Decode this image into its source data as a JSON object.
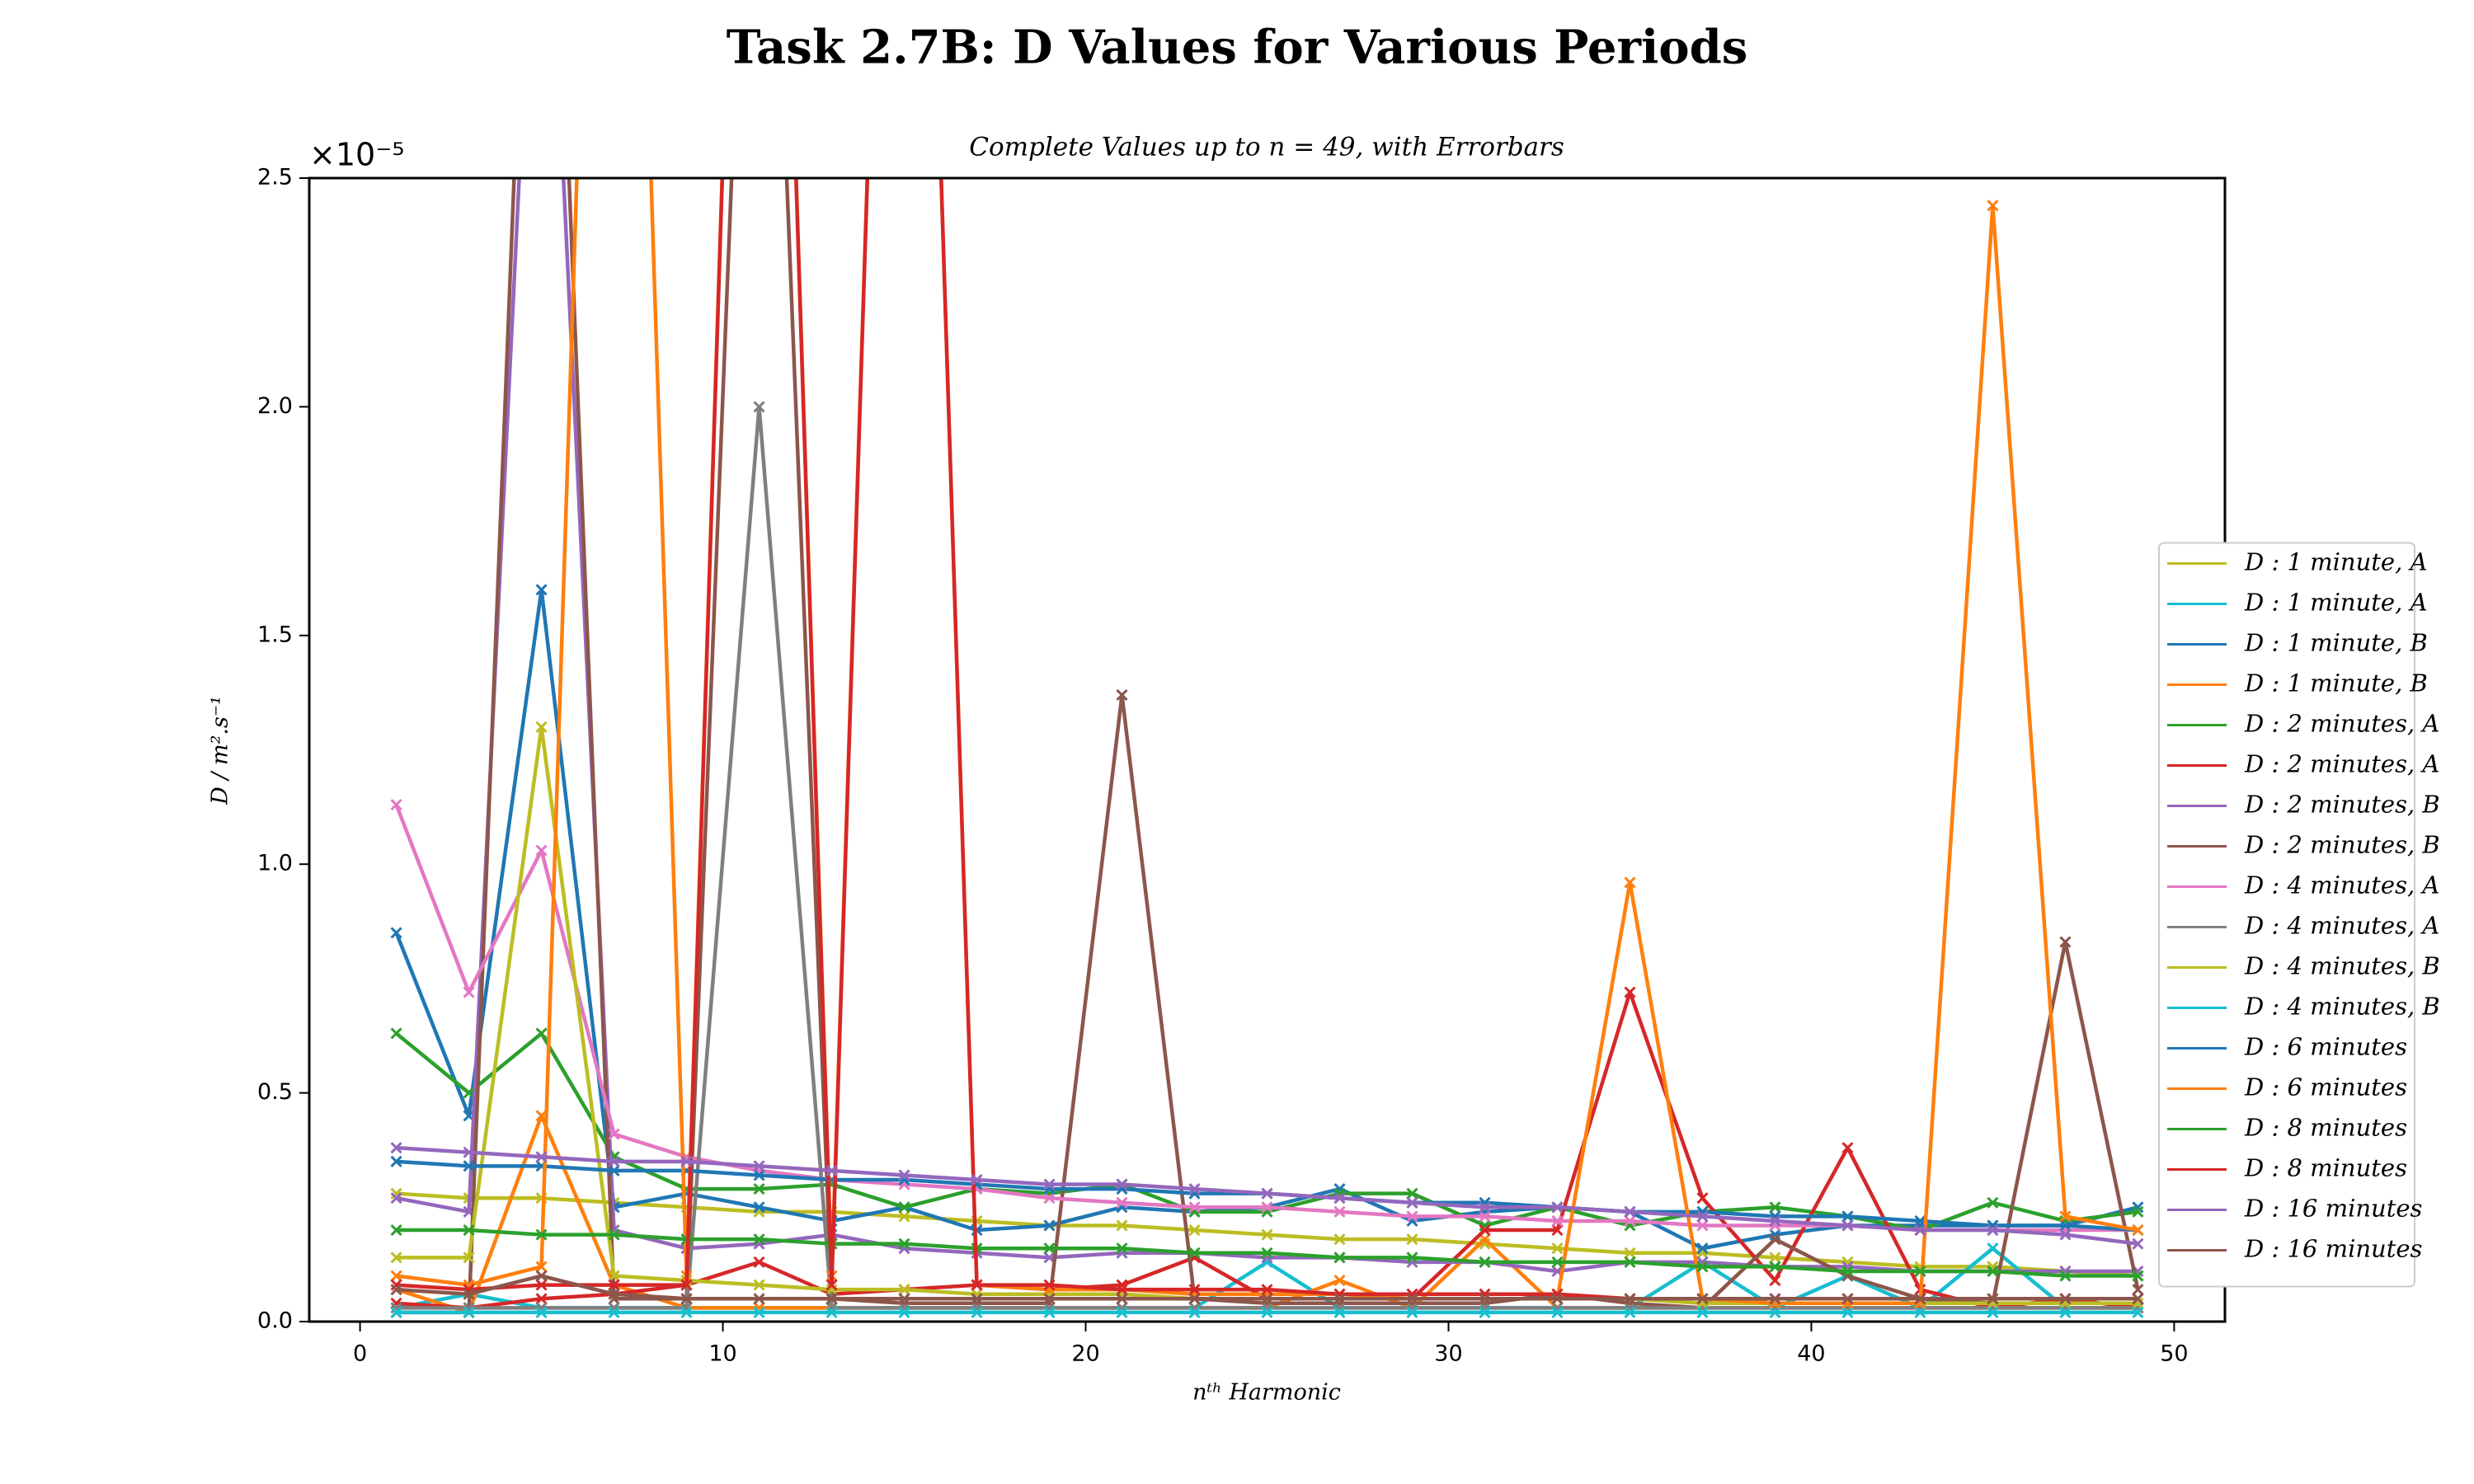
{
  "chart_data": {
    "type": "line",
    "title": "Task 2.7B: D Values for Various Periods",
    "subtitle": "Complete Values up to n = 49, with Errorbars",
    "x_label": "nᵗʰ Harmonic",
    "y_label": "D / m².s⁻¹",
    "offset_text": "×10⁻⁵",
    "marker": "x",
    "legend": "right",
    "x": [
      1,
      3,
      5,
      7,
      9,
      11,
      13,
      15,
      17,
      19,
      21,
      23,
      25,
      27,
      29,
      31,
      33,
      35,
      37,
      39,
      41,
      43,
      45,
      47,
      49
    ],
    "xlim": [
      -1.4,
      51.4
    ],
    "xticks": [
      0,
      10,
      20,
      30,
      40,
      50
    ],
    "ylim": [
      0,
      2.5
    ],
    "yticks": [
      {
        "value": 0,
        "label": "0.0"
      },
      0.5,
      {
        "value": 1,
        "label": "1.0"
      },
      1.5,
      {
        "value": 2,
        "label": "2.0"
      },
      2.5
    ],
    "series": [
      {
        "name": "D : 1 minute, A",
        "color": "#bcbd22",
        "values": [
          0.28,
          0.27,
          0.27,
          0.26,
          0.25,
          0.24,
          0.24,
          0.23,
          0.22,
          0.21,
          0.21,
          0.2,
          0.19,
          0.18,
          0.18,
          0.17,
          0.16,
          0.15,
          0.15,
          0.14,
          0.13,
          0.12,
          0.12,
          0.11,
          0.1
        ]
      },
      {
        "name": "D : 1 minute, A",
        "color": "#17becf",
        "values": [
          0.03,
          0.06,
          0.03,
          0.03,
          0.03,
          0.03,
          0.03,
          0.03,
          0.03,
          0.03,
          0.03,
          0.03,
          0.13,
          0.03,
          0.03,
          0.03,
          0.03,
          0.03,
          0.13,
          0.03,
          0.1,
          0.03,
          0.16,
          0.03,
          0.03
        ]
      },
      {
        "name": "D : 1 minute, B",
        "color": "#1f77b4",
        "values": [
          0.85,
          0.45,
          1.6,
          0.25,
          0.28,
          0.25,
          0.22,
          0.25,
          0.2,
          0.21,
          0.25,
          0.24,
          0.25,
          0.29,
          0.22,
          0.24,
          0.25,
          0.24,
          0.16,
          0.19,
          0.21,
          0.21,
          0.21,
          0.21,
          0.25
        ]
      },
      {
        "name": "D : 1 minute, B",
        "color": "#ff7f0e",
        "values": [
          0.07,
          0.02,
          0.45,
          0.08,
          0.03,
          0.03,
          0.03,
          0.03,
          0.03,
          0.03,
          0.03,
          0.03,
          0.03,
          0.09,
          0.03,
          0.18,
          0.03,
          0.03,
          0.03,
          0.03,
          0.03,
          0.03,
          0.03,
          0.03,
          0.03
        ]
      },
      {
        "name": "D : 2 minutes, A",
        "color": "#2ca02c",
        "values": [
          0.63,
          0.5,
          0.63,
          0.36,
          0.29,
          0.29,
          0.3,
          0.25,
          0.29,
          0.28,
          0.3,
          0.24,
          0.24,
          0.28,
          0.28,
          0.21,
          0.25,
          0.21,
          0.24,
          0.25,
          0.23,
          0.2,
          0.26,
          0.22,
          0.24
        ]
      },
      {
        "name": "D : 2 minutes, A",
        "color": "#d62728",
        "values": [
          0.04,
          0.03,
          0.05,
          0.06,
          0.08,
          0.13,
          0.06,
          0.07,
          0.08,
          0.07,
          0.08,
          0.14,
          0.05,
          0.05,
          0.05,
          0.2,
          0.2,
          0.72,
          0.27,
          0.09,
          0.38,
          0.07,
          0.03,
          0.05,
          0.03
        ]
      },
      {
        "name": "D : 2 minutes, B",
        "color": "#9467bd",
        "values": [
          0.27,
          0.24,
          3.5,
          0.2,
          0.16,
          0.17,
          0.19,
          0.16,
          0.15,
          0.14,
          0.15,
          0.15,
          0.14,
          0.14,
          0.13,
          0.13,
          0.11,
          0.13,
          0.13,
          0.12,
          0.12,
          0.11,
          0.11,
          0.11,
          0.11
        ]
      },
      {
        "name": "D : 2 minutes, B",
        "color": "#8c564b",
        "values": [
          0.02,
          0.02,
          4,
          0.05,
          0.05,
          4,
          0.05,
          0.04,
          0.04,
          0.04,
          1.37,
          0.05,
          0.04,
          0.04,
          0.04,
          0.04,
          0.06,
          0.04,
          0.03,
          0.18,
          0.1,
          0.05,
          0.04,
          0.83,
          0.07
        ]
      },
      {
        "name": "D : 4 minutes, A",
        "color": "#e377c2",
        "values": [
          1.13,
          0.72,
          1.03,
          0.41,
          0.36,
          0.33,
          0.31,
          0.3,
          0.29,
          0.27,
          0.26,
          0.25,
          0.25,
          0.24,
          0.23,
          0.23,
          0.22,
          0.22,
          0.21,
          0.21,
          0.21,
          0.2,
          0.2,
          0.2,
          0.2
        ]
      },
      {
        "name": "D : 4 minutes, A",
        "color": "#7f7f7f",
        "values": [
          0.03,
          0.03,
          0.03,
          0.03,
          0.03,
          2.0,
          0.03,
          0.03,
          0.03,
          0.03,
          0.03,
          0.03,
          0.03,
          0.03,
          0.03,
          0.03,
          0.03,
          0.03,
          0.03,
          0.03,
          0.03,
          0.03,
          0.03,
          0.03,
          0.03
        ]
      },
      {
        "name": "D : 4 minutes, B",
        "color": "#bcbd22",
        "values": [
          0.14,
          0.14,
          1.3,
          0.1,
          0.09,
          0.08,
          0.07,
          0.07,
          0.06,
          0.06,
          0.06,
          0.05,
          0.05,
          0.05,
          0.05,
          0.05,
          0.05,
          0.05,
          0.04,
          0.04,
          0.04,
          0.04,
          0.04,
          0.04,
          0.04
        ]
      },
      {
        "name": "D : 4 minutes, B",
        "color": "#17becf",
        "values": [
          0.02,
          0.02,
          0.02,
          0.02,
          0.02,
          0.02,
          0.02,
          0.02,
          0.02,
          0.02,
          0.02,
          0.02,
          0.02,
          0.02,
          0.02,
          0.02,
          0.02,
          0.02,
          0.02,
          0.02,
          0.02,
          0.02,
          0.02,
          0.02,
          0.02
        ]
      },
      {
        "name": "D : 6 minutes",
        "color": "#1f77b4",
        "values": [
          0.35,
          0.34,
          0.34,
          0.33,
          0.33,
          0.32,
          0.31,
          0.31,
          0.3,
          0.29,
          0.29,
          0.28,
          0.28,
          0.27,
          0.26,
          0.26,
          0.25,
          0.24,
          0.24,
          0.23,
          0.23,
          0.22,
          0.21,
          0.21,
          0.2
        ]
      },
      {
        "name": "D : 6 minutes",
        "color": "#ff7f0e",
        "values": [
          0.1,
          0.08,
          0.12,
          5,
          0.1,
          5,
          0.1,
          5,
          0.08,
          0.07,
          0.07,
          0.06,
          0.06,
          0.06,
          0.05,
          0.05,
          0.05,
          0.96,
          0.05,
          0.04,
          0.04,
          0.04,
          2.44,
          0.23,
          0.2
        ]
      },
      {
        "name": "D : 8 minutes",
        "color": "#2ca02c",
        "values": [
          0.2,
          0.2,
          0.19,
          0.19,
          0.18,
          0.18,
          0.17,
          0.17,
          0.16,
          0.16,
          0.16,
          0.15,
          0.15,
          0.14,
          0.14,
          0.13,
          0.13,
          0.13,
          0.12,
          0.12,
          0.11,
          0.11,
          0.11,
          0.1,
          0.1
        ]
      },
      {
        "name": "D : 8 minutes",
        "color": "#d62728",
        "values": [
          0.08,
          0.07,
          0.08,
          0.08,
          0.08,
          5,
          0.08,
          5,
          0.08,
          0.08,
          0.07,
          0.07,
          0.07,
          0.06,
          0.06,
          0.06,
          0.06,
          0.05,
          0.05,
          0.05,
          0.05,
          0.05,
          0.05,
          0.05,
          0.05
        ]
      },
      {
        "name": "D : 16 minutes",
        "color": "#9467bd",
        "values": [
          0.38,
          0.37,
          0.36,
          0.35,
          0.35,
          0.34,
          0.33,
          0.32,
          0.31,
          0.3,
          0.3,
          0.29,
          0.28,
          0.27,
          0.26,
          0.25,
          0.25,
          0.24,
          0.23,
          0.22,
          0.21,
          0.2,
          0.2,
          0.19,
          0.17
        ]
      },
      {
        "name": "D : 16 minutes",
        "color": "#8c564b",
        "values": [
          0.07,
          0.06,
          0.1,
          0.06,
          0.05,
          0.05,
          0.05,
          0.05,
          0.05,
          0.05,
          0.05,
          0.05,
          0.05,
          0.05,
          0.05,
          0.05,
          0.05,
          0.05,
          0.05,
          0.05,
          0.05,
          0.05,
          0.05,
          0.05,
          0.05
        ]
      }
    ]
  }
}
